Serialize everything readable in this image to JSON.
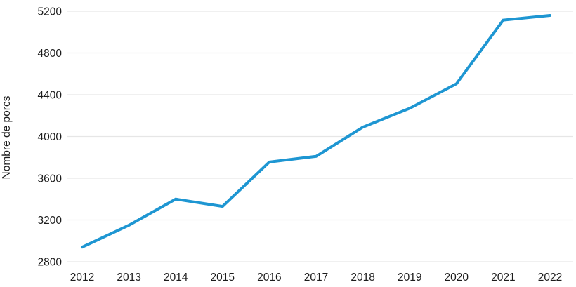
{
  "chart_data": {
    "type": "line",
    "title": "",
    "xlabel": "",
    "ylabel": "Nombre de porcs",
    "categories": [
      "2012",
      "2013",
      "2014",
      "2015",
      "2016",
      "2017",
      "2018",
      "2019",
      "2020",
      "2021",
      "2022"
    ],
    "series": [
      {
        "name": "Nombre de porcs",
        "values": [
          2940,
          3150,
          3400,
          3330,
          3755,
          3810,
          4090,
          4270,
          4505,
          5115,
          5160
        ]
      }
    ],
    "ylim": [
      2800,
      5200
    ],
    "yticks": [
      2800,
      3200,
      3600,
      4000,
      4400,
      4800,
      5200
    ],
    "grid": "horizontal-only",
    "legend_position": "none",
    "colors": {
      "line": "#1e96d2",
      "grid": "#e6e6e6",
      "text": "#1c1c1c",
      "background": "#ffffff"
    }
  }
}
